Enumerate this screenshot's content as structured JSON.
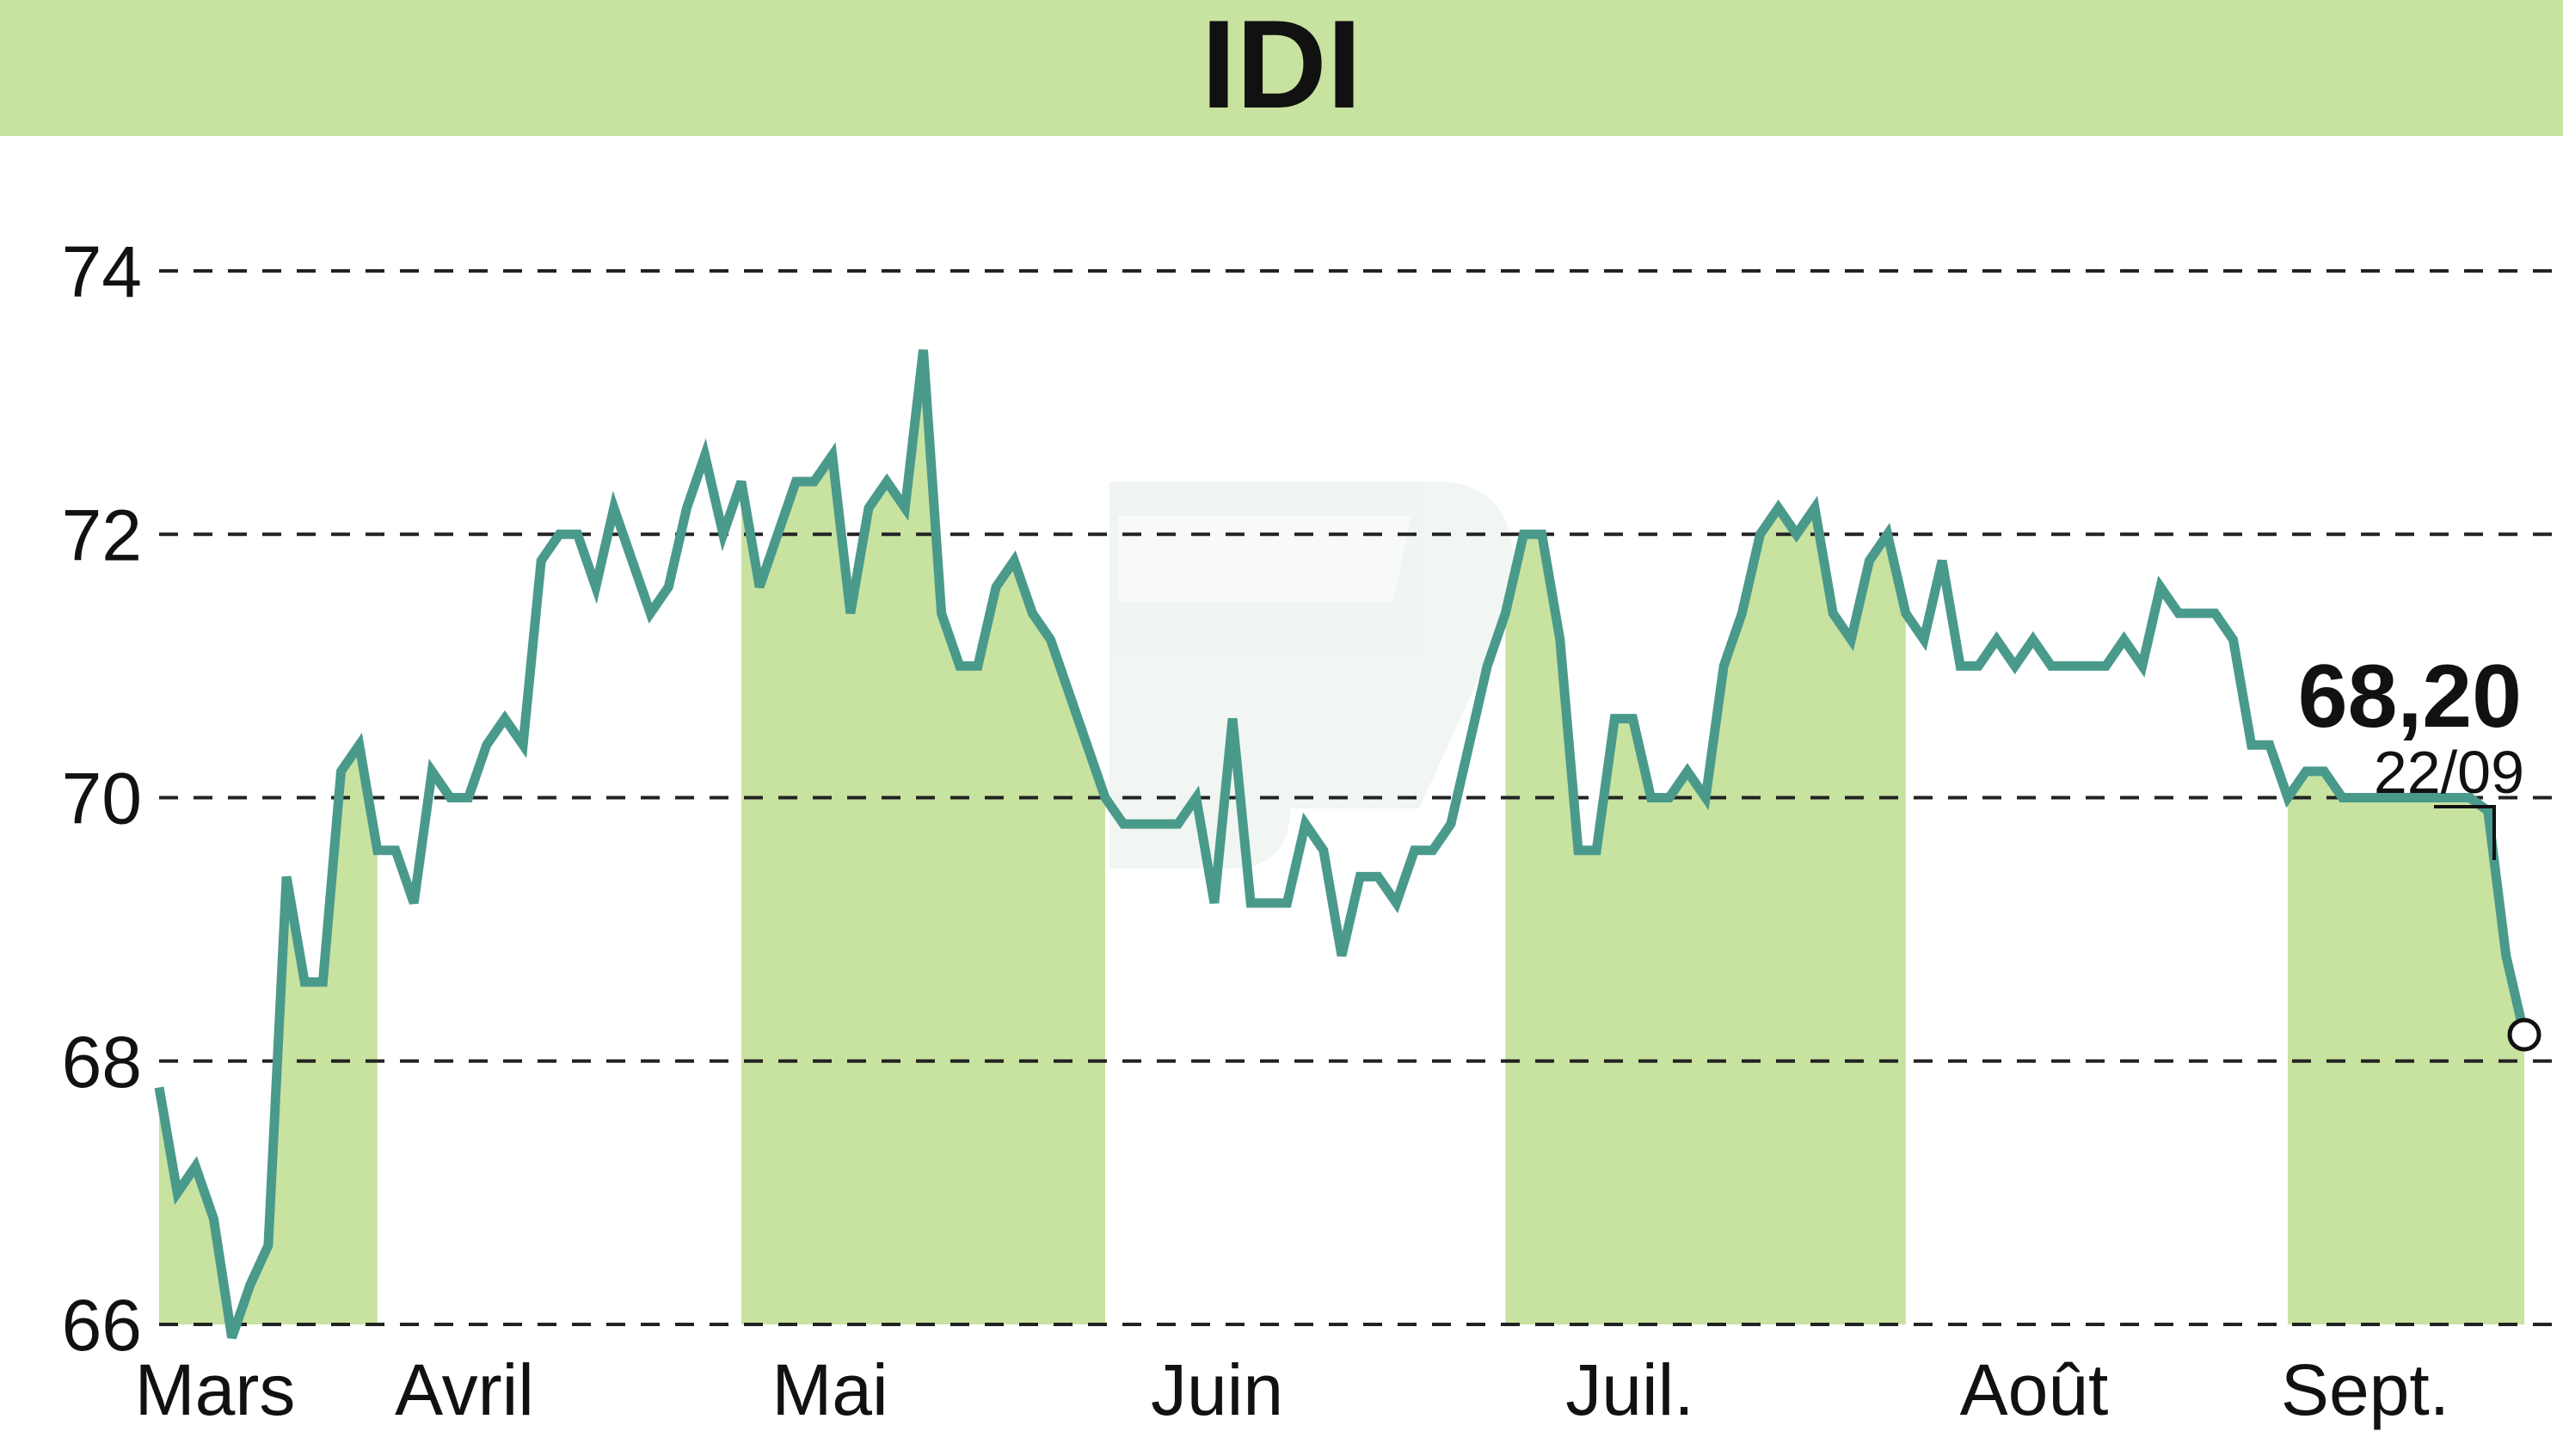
{
  "title": "IDI",
  "colors": {
    "banner": "#c8e2a0",
    "band": "#c8e2a0",
    "line": "#4a9a8c",
    "grid": "#222222",
    "watermark": "#dfe9e2"
  },
  "chart_data": {
    "type": "line",
    "title": "IDI",
    "ylim": [
      66,
      74
    ],
    "yticks": [
      66,
      68,
      70,
      72,
      74
    ],
    "ytick_labels": [
      "66",
      "68",
      "70",
      "72",
      "74"
    ],
    "grid": "horizontal dashed",
    "months": [
      {
        "label": "Mars",
        "start": 0,
        "end": 12,
        "shaded": true
      },
      {
        "label": "Avril",
        "start": 13,
        "end": 31,
        "shaded": false
      },
      {
        "label": "Mai",
        "start": 32,
        "end": 52,
        "shaded": true
      },
      {
        "label": "Juin",
        "start": 53,
        "end": 73,
        "shaded": false
      },
      {
        "label": "Juil.",
        "start": 74,
        "end": 96,
        "shaded": true
      },
      {
        "label": "Août",
        "start": 97,
        "end": 116,
        "shaded": false
      },
      {
        "label": "Sept.",
        "start": 117,
        "end": 130,
        "shaded": true
      }
    ],
    "series": [
      {
        "values": [
          67.8,
          67.0,
          67.2,
          66.8,
          65.9,
          66.3,
          66.6,
          69.4,
          68.6,
          68.6,
          70.2,
          70.4,
          69.6,
          69.6,
          69.2,
          70.2,
          70.0,
          70.0,
          70.4,
          70.6,
          70.4,
          71.8,
          72.0,
          72.0,
          71.6,
          72.2,
          71.8,
          71.4,
          71.6,
          72.2,
          72.6,
          72.0,
          72.4,
          71.6,
          72.0,
          72.4,
          72.4,
          72.6,
          71.4,
          72.2,
          72.4,
          72.2,
          73.4,
          71.4,
          71.0,
          71.0,
          71.6,
          71.8,
          71.4,
          71.2,
          70.8,
          70.4,
          70.0,
          69.8,
          69.8,
          69.8,
          69.8,
          70.0,
          69.2,
          70.6,
          69.2,
          69.2,
          69.2,
          69.8,
          69.6,
          68.8,
          69.4,
          69.4,
          69.2,
          69.6,
          69.6,
          69.8,
          70.4,
          71.0,
          71.4,
          72.0,
          72.0,
          71.2,
          69.6,
          69.6,
          70.6,
          70.6,
          70.0,
          70.0,
          70.2,
          70.0,
          71.0,
          71.4,
          72.0,
          72.2,
          72.0,
          72.2,
          71.4,
          71.2,
          71.8,
          72.0,
          71.4,
          71.2,
          71.8,
          71.0,
          71.0,
          71.2,
          71.0,
          71.2,
          71.0,
          71.0,
          71.0,
          71.0,
          71.2,
          71.0,
          71.6,
          71.4,
          71.4,
          71.4,
          71.2,
          70.4,
          70.4,
          70.0,
          70.2,
          70.2,
          70.0,
          70.0,
          70.0,
          70.0,
          70.0,
          70.0,
          70.0,
          70.0,
          69.9,
          68.8,
          68.2
        ]
      }
    ],
    "last_value": "68,20",
    "last_date": "22/09"
  }
}
